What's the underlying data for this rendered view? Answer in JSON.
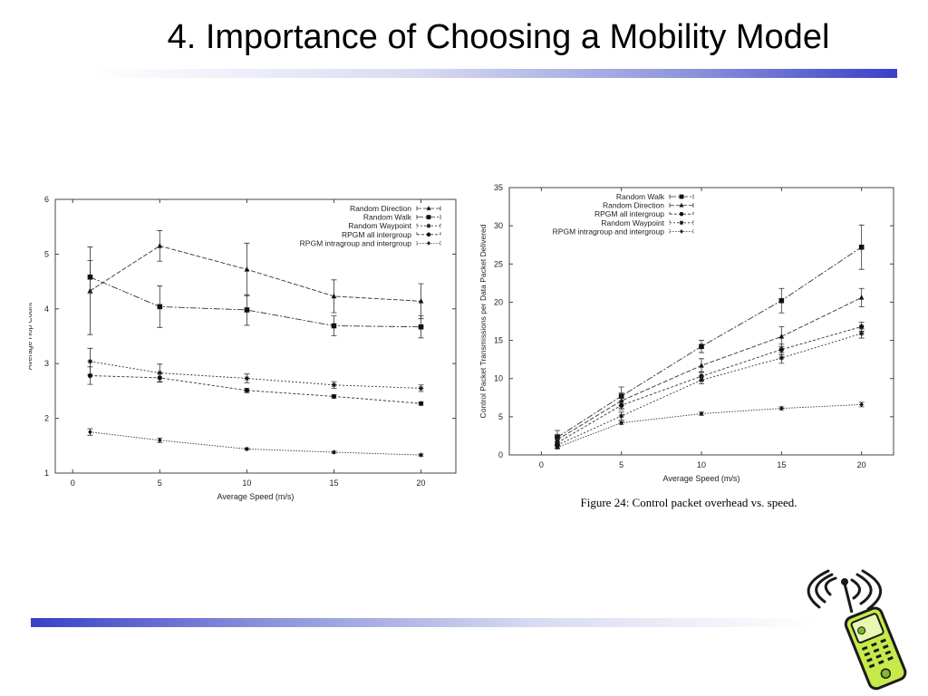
{
  "slide": {
    "title": "4. Importance of Choosing a Mobility Model",
    "caption": "Figure 24: Control packet overhead vs. speed."
  },
  "chart_data": [
    {
      "type": "line",
      "title": "",
      "xlabel": "Average Speed (m/s)",
      "ylabel": "Average Hop Count",
      "xlim": [
        -1,
        22
      ],
      "ylim": [
        1,
        6
      ],
      "xticks": [
        0,
        5,
        10,
        15,
        20
      ],
      "yticks": [
        1,
        2,
        3,
        4,
        5,
        6
      ],
      "legend_position": "top-right",
      "x": [
        1,
        5,
        10,
        15,
        20
      ],
      "series": [
        {
          "name": "Random Direction",
          "marker": "triangle",
          "values": [
            4.33,
            5.15,
            4.72,
            4.23,
            4.14
          ],
          "err": [
            0.8,
            0.28,
            0.48,
            0.3,
            0.32
          ]
        },
        {
          "name": "Random Walk",
          "marker": "square",
          "values": [
            4.58,
            4.04,
            3.98,
            3.69,
            3.67
          ],
          "err": [
            0.3,
            0.38,
            0.28,
            0.18,
            0.2
          ]
        },
        {
          "name": "Random Waypoint",
          "marker": "star",
          "values": [
            3.04,
            2.83,
            2.73,
            2.61,
            2.55
          ],
          "err": [
            0.24,
            0.16,
            0.08,
            0.06,
            0.06
          ]
        },
        {
          "name": "RPGM all intergroup",
          "marker": "circle",
          "values": [
            2.78,
            2.74,
            2.51,
            2.4,
            2.27
          ],
          "err": [
            0.16,
            0.08,
            0.04,
            0.03,
            0.03
          ]
        },
        {
          "name": "RPGM intragroup and intergroup",
          "marker": "diamond",
          "values": [
            1.75,
            1.6,
            1.44,
            1.38,
            1.33
          ],
          "err": [
            0.06,
            0.04,
            0.02,
            0.02,
            0.02
          ]
        }
      ]
    },
    {
      "type": "line",
      "title": "",
      "xlabel": "Average Speed (m/s)",
      "ylabel": "Control Packet Transmissions per Data Packet Delivered",
      "xlim": [
        -2,
        22
      ],
      "ylim": [
        0,
        35
      ],
      "xticks": [
        0,
        5,
        10,
        15,
        20
      ],
      "yticks": [
        0,
        5,
        10,
        15,
        20,
        25,
        30,
        35
      ],
      "legend_position": "top-left",
      "x": [
        1,
        5,
        10,
        15,
        20
      ],
      "series": [
        {
          "name": "Random Walk",
          "marker": "square",
          "values": [
            2.3,
            7.7,
            14.2,
            20.2,
            27.2
          ],
          "err": [
            0.9,
            1.2,
            0.8,
            1.6,
            2.9
          ]
        },
        {
          "name": "Random Direction",
          "marker": "triangle",
          "values": [
            2.0,
            7.1,
            11.7,
            15.5,
            20.6
          ],
          "err": [
            0.7,
            1.0,
            0.9,
            1.3,
            1.2
          ]
        },
        {
          "name": "RPGM all intergroup",
          "marker": "circle",
          "values": [
            1.6,
            6.5,
            10.3,
            13.8,
            16.8
          ],
          "err": [
            0.5,
            0.6,
            0.6,
            0.7,
            0.6
          ]
        },
        {
          "name": "Random Waypoint",
          "marker": "star",
          "values": [
            1.3,
            5.1,
            9.8,
            12.7,
            15.9
          ],
          "err": [
            0.4,
            0.5,
            0.5,
            0.7,
            0.6
          ]
        },
        {
          "name": "RPGM intragroup and intergroup",
          "marker": "diamond",
          "values": [
            1.0,
            4.2,
            5.4,
            6.1,
            6.6
          ],
          "err": [
            0.2,
            0.2,
            0.2,
            0.2,
            0.3
          ]
        }
      ]
    }
  ]
}
